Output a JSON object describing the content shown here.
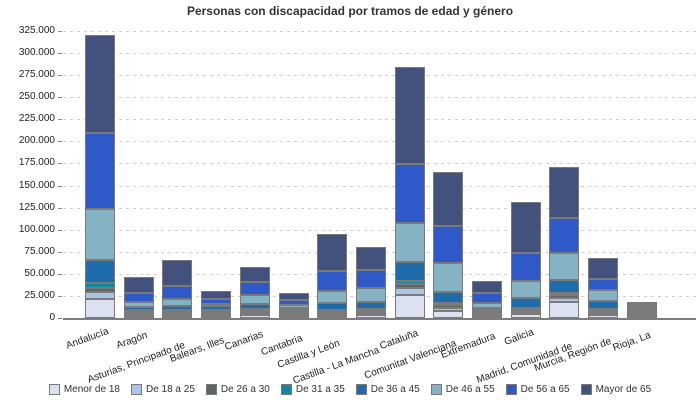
{
  "title": "Personas con discapacidad por tramos de edad y género",
  "chart_data": {
    "type": "bar",
    "stacked": true,
    "title": "Personas con discapacidad por tramos de edad y género",
    "xlabel": "",
    "ylabel": "",
    "ylim": [
      0,
      325000
    ],
    "ytick_step": 25000,
    "ytick_labels": [
      "0",
      "25.000",
      "50.000",
      "75.000",
      "100.000",
      "125.000",
      "150.000",
      "175.000",
      "200.000",
      "225.000",
      "250.000",
      "275.000",
      "300.000",
      "325.000"
    ],
    "grid": "horizontal-dashed",
    "legend_position": "bottom",
    "categories": [
      "Andalucía",
      "Aragón",
      "Asturias, Principado de",
      "Balears, Illes",
      "Canarias",
      "Cantabria",
      "Castilla y León",
      "Castilla - La Mancha",
      "Cataluña",
      "Comunitat Valenciana",
      "Extremadura",
      "Galicia",
      "Madrid, Comunidad de",
      "Murcia, Región de",
      "Rioja, La"
    ],
    "series": [
      {
        "name": "Menor de 18",
        "color": "#dce0f0",
        "values": [
          22000,
          2500,
          1200,
          1500,
          3000,
          1000,
          2500,
          3500,
          26000,
          8000,
          1500,
          4000,
          18500,
          3000,
          600
        ]
      },
      {
        "name": "De 18 a 25",
        "color": "#abc4e6",
        "values": [
          8000,
          1000,
          1000,
          1500,
          1500,
          500,
          1500,
          2000,
          8000,
          3500,
          800,
          2000,
          4000,
          1200,
          300
        ]
      },
      {
        "name": "De 26 a 30",
        "color": "#5f6468",
        "values": [
          4000,
          800,
          2000,
          1000,
          1500,
          400,
          1500,
          1200,
          4000,
          3000,
          700,
          1000,
          3000,
          1000,
          250
        ]
      },
      {
        "name": "De 31 a 35",
        "color": "#1188a0",
        "values": [
          6000,
          1200,
          500,
          1000,
          2000,
          600,
          2500,
          2300,
          4000,
          2500,
          1000,
          2000,
          3000,
          1300,
          350
        ]
      },
      {
        "name": "De 36 a 45",
        "color": "#1e6cac",
        "values": [
          26000,
          3500,
          4500,
          3500,
          5500,
          1500,
          8000,
          8000,
          21000,
          13000,
          3000,
          11000,
          14000,
          9000,
          800
        ]
      },
      {
        "name": "De 46 a 55",
        "color": "#86b3c4",
        "values": [
          57000,
          7000,
          7500,
          3500,
          11000,
          4000,
          14000,
          16000,
          45000,
          32000,
          7000,
          21000,
          31000,
          13500,
          1700
        ]
      },
      {
        "name": "De 56 a 65",
        "color": "#2f58c8",
        "values": [
          86000,
          10000,
          16000,
          7000,
          15000,
          8000,
          23000,
          21000,
          66000,
          42000,
          12000,
          32000,
          39500,
          14000,
          2300
        ]
      },
      {
        "name": "Mayor de 65",
        "color": "#42527c",
        "values": [
          111000,
          20000,
          32000,
          10000,
          18000,
          10000,
          42000,
          26000,
          110000,
          61000,
          16000,
          58000,
          58000,
          25000,
          3700
        ]
      }
    ],
    "totals": [
      320000,
      46000,
      64700,
      29000,
      57500,
      26000,
      95000,
      80000,
      284000,
      165000,
      42000,
      131000,
      171000,
      68000,
      10000
    ]
  }
}
